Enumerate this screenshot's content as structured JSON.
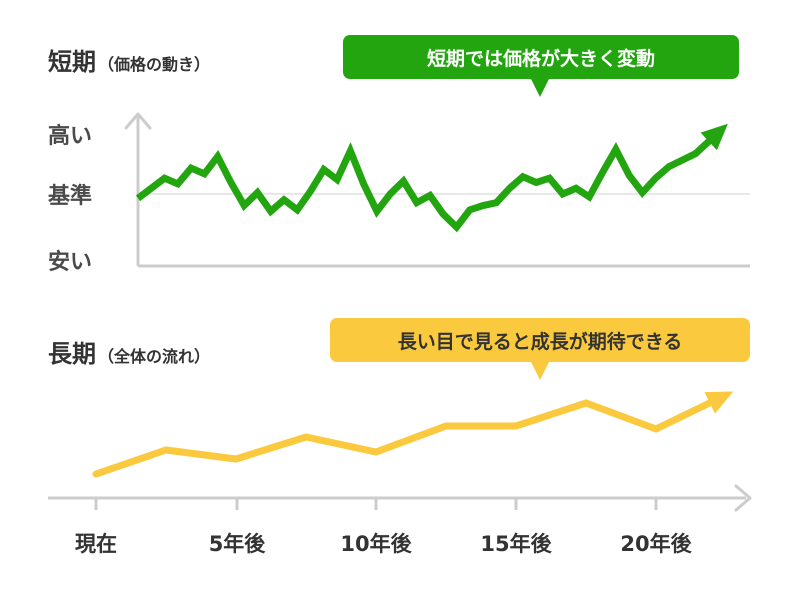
{
  "short_term": {
    "title": "短期",
    "subtitle": "（価格の動き）",
    "callout": "短期では価格が大きく変動",
    "y_labels": [
      "高い",
      "基準",
      "安い"
    ]
  },
  "long_term": {
    "title": "長期",
    "subtitle": "（全体の流れ）",
    "callout": "長い目で見ると成長が期待できる"
  },
  "x_labels": [
    "現在",
    "5年後",
    "10年後",
    "15年後",
    "20年後"
  ],
  "colors": {
    "short_line": "#22a50f",
    "long_line": "#fbc93d",
    "axis": "#cccccc",
    "text": "#333333"
  },
  "chart_data": [
    {
      "type": "line",
      "title": "短期",
      "ylim": [
        0,
        100
      ],
      "y_ticks": [
        {
          "label": "高い",
          "value": 100
        },
        {
          "label": "基準",
          "value": 50
        },
        {
          "label": "安い",
          "value": 0
        }
      ],
      "x": [
        0,
        1,
        1.5,
        2,
        2.5,
        3,
        3.5,
        4,
        4.5,
        5,
        5.5,
        6,
        6.5,
        7,
        7.5,
        8,
        8.5,
        9,
        9.5,
        10,
        10.5,
        11,
        11.5,
        12,
        12.5,
        13,
        13.5,
        14,
        14.5,
        15,
        15.5,
        16,
        16.5,
        17,
        17.5,
        18,
        18.5,
        19,
        19.5,
        20,
        21,
        22
      ],
      "values": [
        47,
        61,
        57,
        68,
        64,
        76,
        58,
        42,
        51,
        38,
        46,
        39,
        52,
        67,
        60,
        80,
        57,
        38,
        50,
        59,
        44,
        49,
        36,
        27,
        39,
        42,
        44,
        54,
        62,
        58,
        61,
        50,
        54,
        48,
        65,
        81,
        63,
        51,
        61,
        69,
        78,
        95
      ],
      "series_name": ""
    },
    {
      "type": "line",
      "title": "長期",
      "x": [
        0,
        2.5,
        5,
        7.5,
        10,
        12.5,
        15,
        17.5,
        20,
        22.5
      ],
      "values": [
        10,
        34,
        25,
        47,
        32,
        58,
        58,
        81,
        55,
        89
      ],
      "xlim": [
        0,
        23
      ]
    }
  ]
}
